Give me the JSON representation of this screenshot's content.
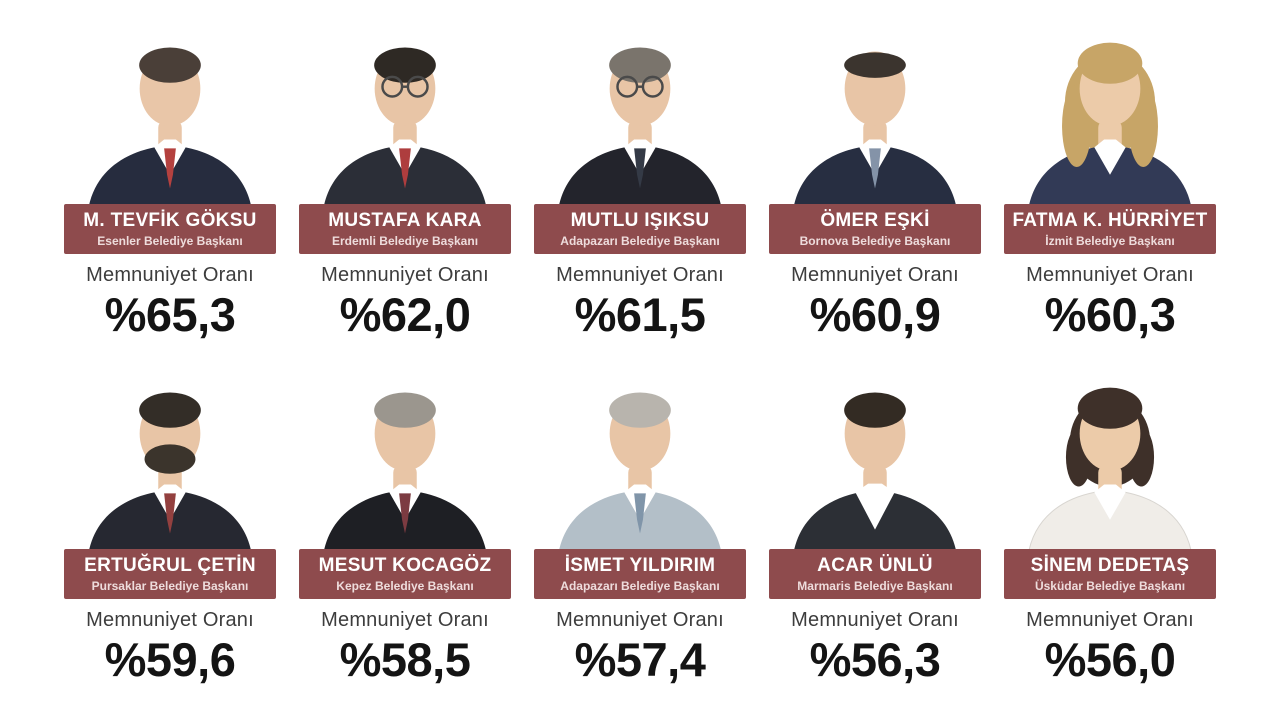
{
  "page": {
    "satisfaction_label": "Memnuniyet Oranı"
  },
  "theme": {
    "background": "#ffffff",
    "banner_color": "#8e4b4d",
    "banner_text_color": "#ffffff",
    "banner_subtext_color": "#eedcdc",
    "label_color": "#3d3d3d",
    "value_color": "#141414"
  },
  "mayors": [
    {
      "name": "M. TEVFİK GÖKSU",
      "title": "Esenler Belediye Başkanı",
      "value": "%65,3",
      "portrait": {
        "icon": "man-portrait-icon",
        "hair": "short",
        "hairColor": "#4a3f38",
        "suitColor": "#262c3e",
        "shirtColor": "#ffffff",
        "tieColor": "#b4413f",
        "skin": "#e9c6a8",
        "glasses": false,
        "beard": false
      }
    },
    {
      "name": "MUSTAFA KARA",
      "title": "Erdemli Belediye Başkanı",
      "value": "%62,0",
      "portrait": {
        "icon": "man-glasses-portrait-icon",
        "hair": "short",
        "hairColor": "#2e2924",
        "suitColor": "#2b2e37",
        "shirtColor": "#ffffff",
        "tieColor": "#ae3d3e",
        "skin": "#e8c5a6",
        "glasses": true,
        "beard": false
      }
    },
    {
      "name": "MUTLU IŞIKSU",
      "title": "Adapazarı Belediye Başkanı",
      "value": "%61,5",
      "portrait": {
        "icon": "man-glasses-portrait-icon",
        "hair": "short",
        "hairColor": "#7a746c",
        "suitColor": "#23242c",
        "shirtColor": "#ffffff",
        "tieColor": "#343a46",
        "skin": "#e8c5a6",
        "glasses": true,
        "beard": false
      }
    },
    {
      "name": "ÖMER EŞKİ",
      "title": "Bornova Belediye Başkanı",
      "value": "%60,9",
      "portrait": {
        "icon": "man-portrait-icon",
        "hair": "short",
        "receding": true,
        "hairColor": "#3b342e",
        "suitColor": "#272e41",
        "shirtColor": "#ffffff",
        "tieColor": "#8493a8",
        "skin": "#e8c5a6",
        "glasses": false,
        "beard": false
      }
    },
    {
      "name": "FATMA K. HÜRRİYET",
      "title": "İzmit Belediye Başkanı",
      "value": "%60,3",
      "portrait": {
        "icon": "woman-portrait-icon",
        "hair": "long",
        "hairColor": "#c7a567",
        "suitColor": "#323a56",
        "shirtColor": "#ffffff",
        "tieColor": null,
        "skin": "#eccba9",
        "glasses": false,
        "beard": false
      }
    },
    {
      "name": "ERTUĞRUL ÇETİN",
      "title": "Pursaklar Belediye Başkanı",
      "value": "%59,6",
      "portrait": {
        "icon": "man-beard-portrait-icon",
        "hair": "short",
        "hairColor": "#332d27",
        "suitColor": "#262831",
        "shirtColor": "#ffffff",
        "tieColor": "#93403f",
        "skin": "#e8c5a6",
        "glasses": false,
        "beard": true,
        "beardColor": "#3b342c"
      }
    },
    {
      "name": "MESUT KOCAGÖZ",
      "title": "Kepez Belediye Başkanı",
      "value": "%58,5",
      "portrait": {
        "icon": "man-portrait-icon",
        "hair": "short",
        "hairColor": "#9b968e",
        "suitColor": "#1e1f24",
        "shirtColor": "#ffffff",
        "tieColor": "#7c3b41",
        "skin": "#e8c5a6",
        "glasses": false,
        "beard": false
      }
    },
    {
      "name": "İSMET YILDIRIM",
      "title": "Adapazarı Belediye Başkanı",
      "value": "%57,4",
      "portrait": {
        "icon": "man-portrait-icon",
        "hair": "short",
        "hairColor": "#b8b4ad",
        "suitColor": "#b3bfc8",
        "shirtColor": "#ffffff",
        "tieColor": "#8095a9",
        "skin": "#e8c5a6",
        "glasses": false,
        "beard": false
      }
    },
    {
      "name": "ACAR ÜNLÜ",
      "title": "Marmaris Belediye Başkanı",
      "value": "%56,3",
      "portrait": {
        "icon": "man-portrait-icon",
        "hair": "short",
        "hairColor": "#332b23",
        "suitColor": "#2c2f35",
        "shirtColor": "#ffffff",
        "tieColor": null,
        "openCollar": true,
        "skin": "#e8c5a6",
        "glasses": false,
        "beard": false
      }
    },
    {
      "name": "SİNEM DEDETAŞ",
      "title": "Üsküdar Belediye Başkanı",
      "value": "%56,0",
      "portrait": {
        "icon": "woman-portrait-icon",
        "hair": "bob",
        "hairColor": "#3e3029",
        "suitColor": "#f0ede8",
        "shirtColor": "#ffffff",
        "tieColor": null,
        "skin": "#eccba9",
        "glasses": false,
        "beard": false
      }
    }
  ],
  "chart_data": {
    "type": "table",
    "title": "Belediye Başkanları Memnuniyet Oranı",
    "value_label": "Memnuniyet Oranı",
    "categories": [
      "M. TEVFİK GÖKSU (Esenler)",
      "MUSTAFA KARA (Erdemli)",
      "MUTLU IŞIKSU (Adapazarı)",
      "ÖMER EŞKİ (Bornova)",
      "FATMA K. HÜRRİYET (İzmit)",
      "ERTUĞRUL ÇETİN (Pursaklar)",
      "MESUT KOCAGÖZ (Kepez)",
      "İSMET YILDIRIM (Adapazarı)",
      "ACAR ÜNLÜ (Marmaris)",
      "SİNEM DEDETAŞ (Üsküdar)"
    ],
    "values": [
      65.3,
      62.0,
      61.5,
      60.9,
      60.3,
      59.6,
      58.5,
      57.4,
      56.3,
      56.0
    ],
    "unit": "%"
  }
}
